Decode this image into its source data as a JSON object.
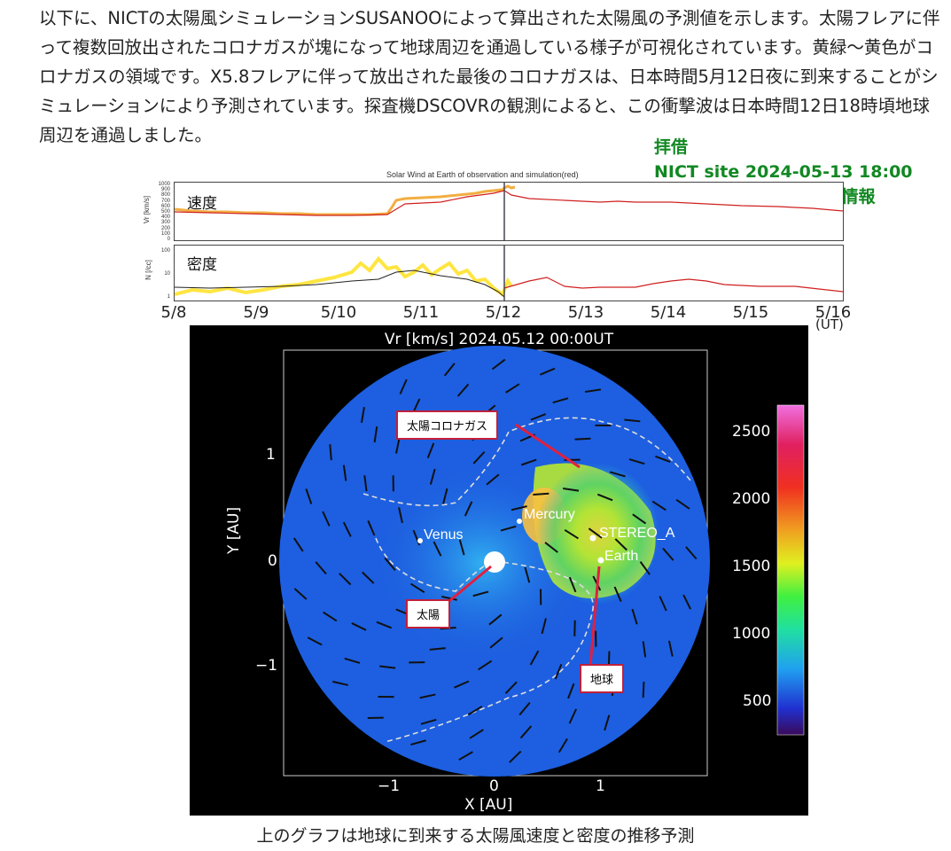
{
  "intro_text": "以下に、NICTの太陽風シミュレーションSUSANOOによって算出された太陽風の予測値を示します。太陽フレアに伴って複数回放出されたコロナガスが塊になって地球周辺を通過している様子が可視化されています。黄緑〜黄色がコロナガスの領域です。X5.8フレアに伴って放出された最後のコロナガスは、日本時間5月12日夜に到来することがシミュレーションにより予測されています。探査機DSCOVRの観測によると、この衝撃波は日本時間12日18時頃地球周辺を通過しました。",
  "credit": {
    "line1": "拝借",
    "line2": "NICT site  2024-05-13 18:00",
    "line3": "大規模 太陽fフレア 臨時情報"
  },
  "timeseries": {
    "title": "Solar Wind at Earth of observation and simulation(red)",
    "speed_label": "速度",
    "speed_ylabel": "Vr [km/s]",
    "speed_ticks": [
      "1000",
      "900",
      "800",
      "700",
      "600",
      "500",
      "400",
      "300",
      "200",
      "100",
      "0"
    ],
    "density_label": "密度",
    "density_ylabel": "N [/cc]",
    "density_ticks": [
      "100",
      "10",
      "1"
    ],
    "dates": [
      "5/8",
      "5/9",
      "5/10",
      "5/11",
      "5/12",
      "5/13",
      "5/14",
      "5/15",
      "5/16"
    ],
    "unit": "(UT)"
  },
  "simulation": {
    "title": "Vr [km/s] 2024.05.12 00:00UT",
    "xlabel": "X  [AU]",
    "ylabel": "Y  [AU]",
    "xticks": [
      "−1",
      "0",
      "1"
    ],
    "yticks": [
      "1",
      "0",
      "−1"
    ],
    "colorbar_ticks": [
      "2500",
      "2000",
      "1500",
      "1000",
      "500"
    ],
    "planets": {
      "venus": "Venus",
      "mercury": "Mercury",
      "stereo": "STEREO_A",
      "earth": "Earth"
    },
    "annotations": {
      "corona_gas": "太陽コロナガス",
      "sun": "太陽",
      "earth": "地球"
    },
    "colors": {
      "background": "#000000",
      "solar_wind_blue": "#1d5fe0",
      "coronal_gas": "#9fe02a",
      "annotation_border": "#c0203a"
    }
  },
  "caption": "上のグラフは地球に到来する太陽風速度と密度の推移予測"
}
